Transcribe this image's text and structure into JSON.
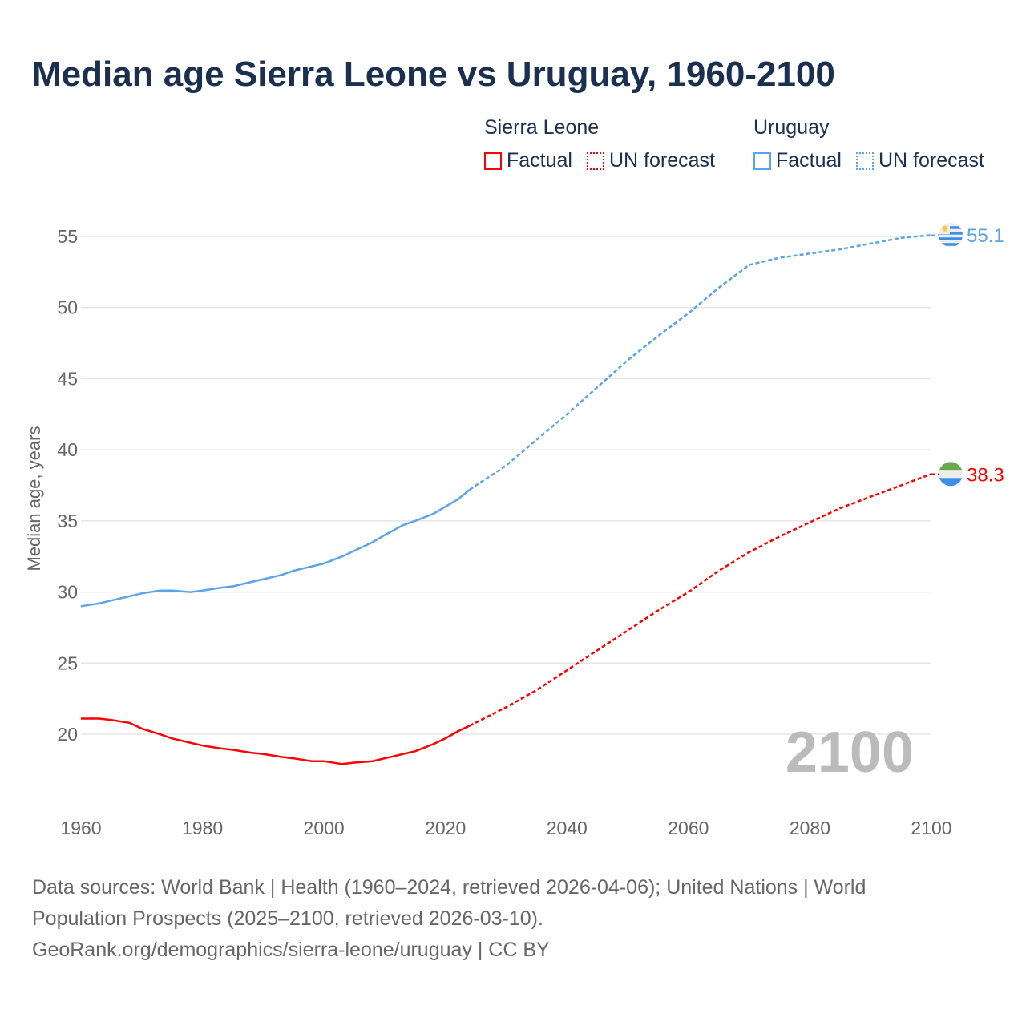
{
  "title": "Median age Sierra Leone vs Uruguay, 1960-2100",
  "legend": {
    "groups": [
      {
        "name": "Sierra Leone",
        "factual": "Factual",
        "forecast": "UN forecast",
        "color": "#ff0000"
      },
      {
        "name": "Uruguay",
        "factual": "Factual",
        "forecast": "UN forecast",
        "color": "#5aa5ea"
      }
    ]
  },
  "year_watermark": "2100",
  "footer": {
    "line1": "Data sources: World Bank | Health (1960–2024, retrieved 2026-04-06); United Nations | World Population Prospects (2025–2100, retrieved 2026-03-10).",
    "line2": "GeoRank.org/demographics/sierra-leone/uruguay | CC BY"
  },
  "chart_data": {
    "type": "line",
    "title": "Median age Sierra Leone vs Uruguay, 1960-2100",
    "xlabel": "",
    "ylabel": "Median age, years",
    "xlim": [
      1960,
      2100
    ],
    "ylim": [
      15,
      56
    ],
    "xticks": [
      "1960",
      "1980",
      "2000",
      "2020",
      "2040",
      "2060",
      "2080",
      "2100"
    ],
    "yticks": [
      "20",
      "25",
      "30",
      "35",
      "40",
      "45",
      "50",
      "55"
    ],
    "grid": true,
    "legend_position": "top-right",
    "series": [
      {
        "name": "Sierra Leone",
        "color": "#ff0000",
        "end_label": "38.3",
        "factual": {
          "x": [
            1960,
            1963,
            1965,
            1968,
            1970,
            1973,
            1975,
            1978,
            1980,
            1983,
            1985,
            1988,
            1990,
            1993,
            1995,
            1998,
            2000,
            2003,
            2005,
            2008,
            2010,
            2013,
            2015,
            2018,
            2020,
            2022,
            2024
          ],
          "y": [
            21.1,
            21.1,
            21.0,
            20.8,
            20.4,
            20.0,
            19.7,
            19.4,
            19.2,
            19.0,
            18.9,
            18.7,
            18.6,
            18.4,
            18.3,
            18.1,
            18.1,
            17.9,
            18.0,
            18.1,
            18.3,
            18.6,
            18.8,
            19.3,
            19.7,
            20.2,
            20.6
          ]
        },
        "forecast": {
          "x": [
            2024,
            2030,
            2035,
            2040,
            2045,
            2050,
            2055,
            2060,
            2065,
            2070,
            2075,
            2080,
            2085,
            2090,
            2095,
            2100
          ],
          "y": [
            20.6,
            21.9,
            23.1,
            24.5,
            25.9,
            27.3,
            28.7,
            30.0,
            31.5,
            32.8,
            33.9,
            34.9,
            35.9,
            36.7,
            37.5,
            38.3
          ]
        }
      },
      {
        "name": "Uruguay",
        "color": "#5aa5ea",
        "end_label": "55.1",
        "factual": {
          "x": [
            1960,
            1963,
            1965,
            1968,
            1970,
            1973,
            1975,
            1978,
            1980,
            1983,
            1985,
            1988,
            1990,
            1993,
            1995,
            1998,
            2000,
            2003,
            2005,
            2008,
            2010,
            2013,
            2015,
            2018,
            2020,
            2022,
            2024
          ],
          "y": [
            29.0,
            29.2,
            29.4,
            29.7,
            29.9,
            30.1,
            30.1,
            30.0,
            30.1,
            30.3,
            30.4,
            30.7,
            30.9,
            31.2,
            31.5,
            31.8,
            32.0,
            32.5,
            32.9,
            33.5,
            34.0,
            34.7,
            35.0,
            35.5,
            36.0,
            36.5,
            37.2
          ]
        },
        "forecast": {
          "x": [
            2024,
            2030,
            2035,
            2040,
            2045,
            2050,
            2055,
            2060,
            2065,
            2070,
            2075,
            2080,
            2085,
            2090,
            2095,
            2100
          ],
          "y": [
            37.2,
            38.9,
            40.7,
            42.5,
            44.4,
            46.3,
            48.0,
            49.6,
            51.4,
            53.0,
            53.5,
            53.8,
            54.1,
            54.5,
            54.9,
            55.1
          ]
        }
      }
    ]
  }
}
